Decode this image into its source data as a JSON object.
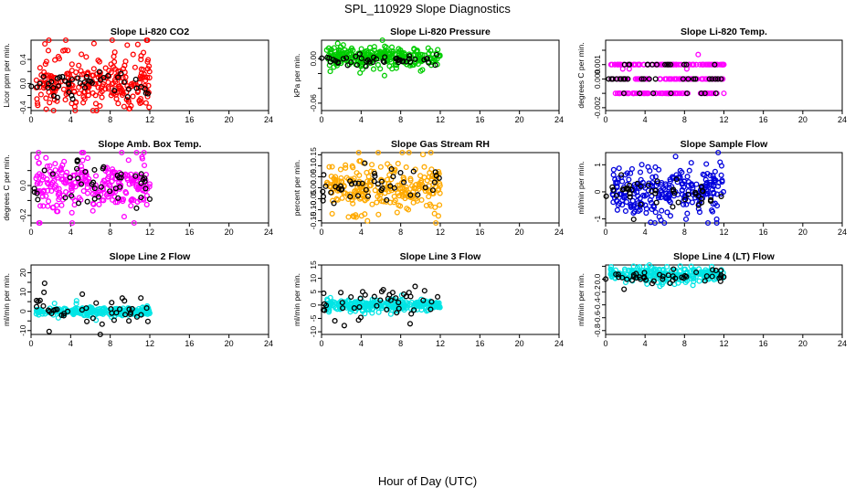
{
  "title": "SPL_110929  Slope Diagnostics",
  "xlabel": "Hour of Day (UTC)",
  "chart_data": [
    {
      "type": "scatter",
      "title": "Slope Li-820 CO2",
      "ylabel": "Licor ppm per min.",
      "color": "#ff0000",
      "xlim": [
        0,
        24
      ],
      "xticks": [
        0,
        4,
        8,
        12,
        16,
        20,
        24
      ],
      "ylim": [
        -0.45,
        0.72
      ],
      "yticks": [
        -0.4,
        -0.2,
        0.0,
        0.2,
        0.4
      ],
      "yticklabels": [
        "-0.4",
        "",
        "0.0",
        "",
        "0.4"
      ],
      "spread": 0.22,
      "outlier_scale": 1.0,
      "black_spread": 0.12,
      "series": [
        {
          "name": "color",
          "x_range": [
            0.5,
            12
          ],
          "center": 0.0
        },
        {
          "name": "black",
          "x_range": [
            0,
            12
          ],
          "center": 0.0
        }
      ]
    },
    {
      "type": "scatter",
      "title": "Slope Li-820 Pressure",
      "ylabel": "kPa per min.",
      "color": "#00cc00",
      "xlim": [
        0,
        24
      ],
      "xticks": [
        0,
        4,
        8,
        12,
        16,
        20,
        24
      ],
      "ylim": [
        -0.07,
        0.025
      ],
      "yticks": [
        -0.06,
        -0.04,
        -0.02,
        0.0
      ],
      "yticklabels": [
        "-0.06",
        "",
        "",
        "0.00"
      ],
      "spread": 0.006,
      "outlier_scale": 1.0,
      "black_spread": 0.004,
      "series": [
        {
          "name": "color",
          "x_range": [
            0.5,
            12
          ],
          "center": 0.002
        },
        {
          "name": "black",
          "x_range": [
            0,
            12
          ],
          "center": -0.002
        }
      ]
    },
    {
      "type": "scatter",
      "title": "Slope Li-820 Temp.",
      "ylabel": "degrees C per min.",
      "color": "#ff00ff",
      "xlim": [
        0,
        24
      ],
      "xticks": [
        0,
        4,
        8,
        12,
        16,
        20,
        24
      ],
      "ylim": [
        -0.0022,
        0.0027
      ],
      "yticks": [
        -0.002,
        -0.001,
        0.0,
        0.001,
        0.002
      ],
      "yticklabels": [
        "-0.002",
        "",
        "0.000",
        "0.001",
        ""
      ],
      "spread": 0.0009,
      "outlier_scale": 1.0,
      "black_spread": 0.0006,
      "series": [
        {
          "name": "color",
          "x_range": [
            0.5,
            12
          ],
          "center": 0.0
        },
        {
          "name": "black",
          "x_range": [
            0,
            12
          ],
          "center": 0.0
        }
      ]
    },
    {
      "type": "scatter",
      "title": "Slope Amb. Box Temp.",
      "ylabel": "degrees C per min.",
      "color": "#ff00ff",
      "xlim": [
        0,
        24
      ],
      "xticks": [
        0,
        4,
        8,
        12,
        16,
        20,
        24
      ],
      "ylim": [
        -0.25,
        0.22
      ],
      "yticks": [
        -0.2,
        -0.1,
        0.0,
        0.1
      ],
      "yticklabels": [
        "-0.2",
        "",
        "0.0",
        ""
      ],
      "spread": 0.08,
      "outlier_scale": 1.0,
      "black_spread": 0.09,
      "series": [
        {
          "name": "color",
          "x_range": [
            0.5,
            12
          ],
          "center": 0.0
        },
        {
          "name": "black",
          "x_range": [
            0,
            12
          ],
          "center": 0.01
        }
      ]
    },
    {
      "type": "scatter",
      "title": "Slope Gas Stream RH",
      "ylabel": "percent per min.",
      "color": "#ffaa00",
      "xlim": [
        0,
        24
      ],
      "xticks": [
        0,
        4,
        8,
        12,
        16,
        20,
        24
      ],
      "ylim": [
        -0.16,
        0.16
      ],
      "yticks": [
        -0.15,
        -0.1,
        -0.05,
        0.0,
        0.05,
        0.1,
        0.15
      ],
      "yticklabels": [
        "-0.15",
        "-0.10",
        "-0.05",
        "0.00",
        "0.05",
        "0.10",
        "0.15"
      ],
      "spread": 0.05,
      "outlier_scale": 1.0,
      "black_spread": 0.04,
      "series": [
        {
          "name": "color",
          "x_range": [
            0.5,
            12
          ],
          "center": 0.0
        },
        {
          "name": "black",
          "x_range": [
            0,
            12
          ],
          "center": 0.0
        }
      ]
    },
    {
      "type": "scatter",
      "title": "Slope Sample Flow",
      "ylabel": "ml/min per min.",
      "color": "#0000dd",
      "xlim": [
        0,
        24
      ],
      "xticks": [
        0,
        4,
        8,
        12,
        16,
        20,
        24
      ],
      "ylim": [
        -1.15,
        1.45
      ],
      "yticks": [
        -1,
        0,
        1
      ],
      "yticklabels": [
        "-1",
        "0",
        "1"
      ],
      "spread": 0.4,
      "outlier_scale": 1.0,
      "black_spread": 0.3,
      "series": [
        {
          "name": "color",
          "x_range": [
            0.5,
            12
          ],
          "center": 0.05
        },
        {
          "name": "black",
          "x_range": [
            0,
            12
          ],
          "center": 0.0
        }
      ]
    },
    {
      "type": "scatter",
      "title": "Slope Line 2 Flow",
      "ylabel": "ml/min per min.",
      "color": "#00e5e5",
      "xlim": [
        0,
        24
      ],
      "xticks": [
        0,
        4,
        8,
        12,
        16,
        20,
        24
      ],
      "ylim": [
        -12,
        24
      ],
      "yticks": [
        -10,
        -5,
        0,
        5,
        10,
        15,
        20
      ],
      "yticklabels": [
        "-10",
        "",
        "0",
        "",
        "10",
        "",
        "20"
      ],
      "spread": 1.0,
      "outlier_scale": 1.0,
      "black_spread": 5.0,
      "series": [
        {
          "name": "color",
          "x_range": [
            0.5,
            12
          ],
          "center": 0.0
        },
        {
          "name": "black",
          "x_range": [
            0,
            12
          ],
          "center": 0.0
        }
      ]
    },
    {
      "type": "scatter",
      "title": "Slope Line 3 Flow",
      "ylabel": "ml/min per min.",
      "color": "#00e5e5",
      "xlim": [
        0,
        24
      ],
      "xticks": [
        0,
        4,
        8,
        12,
        16,
        20,
        24
      ],
      "ylim": [
        -11,
        15
      ],
      "yticks": [
        -10,
        -5,
        0,
        5,
        10,
        15
      ],
      "yticklabels": [
        "-10",
        "-5",
        "0",
        "5",
        "10",
        "15"
      ],
      "spread": 0.9,
      "outlier_scale": 1.0,
      "black_spread": 3.5,
      "series": [
        {
          "name": "color",
          "x_range": [
            0.5,
            12
          ],
          "center": 0.0
        },
        {
          "name": "black",
          "x_range": [
            0,
            12
          ],
          "center": 0.0
        }
      ]
    },
    {
      "type": "scatter",
      "title": "Slope Line 4 (LT) Flow",
      "ylabel": "ml/min per min.",
      "color": "#00e5e5",
      "xlim": [
        0,
        24
      ],
      "xticks": [
        0,
        4,
        8,
        12,
        16,
        20,
        24
      ],
      "ylim": [
        -0.86,
        0.22
      ],
      "yticks": [
        -0.8,
        -0.6,
        -0.4,
        -0.2,
        0.0,
        0.2
      ],
      "yticklabels": [
        "-0.8",
        "-0.6",
        "-0.4",
        "-0.2",
        "0.0",
        ""
      ],
      "spread": 0.05,
      "outlier_scale": 1.0,
      "black_spread": 0.06,
      "series": [
        {
          "name": "color",
          "x_range": [
            0.5,
            12
          ],
          "center": 0.07
        },
        {
          "name": "black",
          "x_range": [
            0,
            12
          ],
          "center": 0.03
        }
      ]
    }
  ]
}
